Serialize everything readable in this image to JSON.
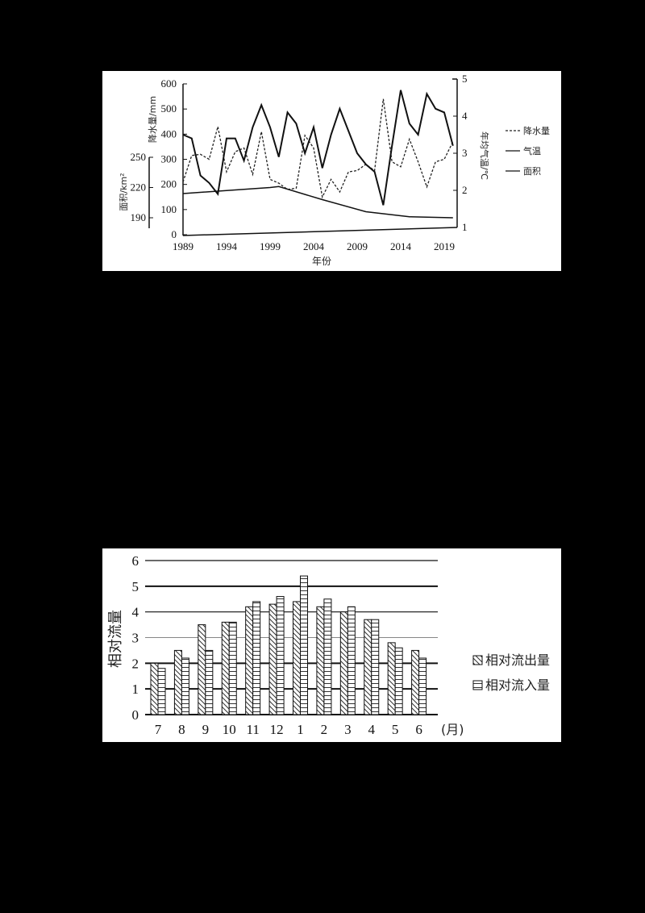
{
  "chart_data": [
    {
      "type": "line",
      "title": "",
      "xlabel": "年份",
      "x_tick_labels": [
        "1989",
        "1994",
        "1999",
        "2004",
        "2009",
        "2014",
        "2019"
      ],
      "axes": {
        "left_precip": {
          "label": "降水量/mm",
          "ticks": [
            0,
            100,
            200,
            300,
            400,
            500,
            600
          ],
          "range": [
            0,
            600
          ]
        },
        "left_area": {
          "label": "面积/km²",
          "ticks": [
            190,
            220,
            250
          ]
        },
        "right_temp": {
          "label": "年均气温/℃",
          "ticks": [
            1,
            2,
            3,
            4,
            5
          ],
          "range": [
            1,
            5
          ]
        }
      },
      "legend": [
        "降水量",
        "气温",
        "面积"
      ],
      "legend_position": "right",
      "series": [
        {
          "name": "降水量",
          "style": "dashed",
          "axis": "left_precip",
          "x": [
            1989,
            1990,
            1991,
            1992,
            1993,
            1994,
            1995,
            1996,
            1997,
            1998,
            1999,
            2000,
            2001,
            2002,
            2003,
            2004,
            2005,
            2006,
            2007,
            2008,
            2009,
            2010,
            2011,
            2012,
            2013,
            2014,
            2015,
            2016,
            2017,
            2018,
            2019,
            2020
          ],
          "values": [
            210,
            315,
            320,
            300,
            430,
            250,
            330,
            345,
            240,
            410,
            220,
            205,
            180,
            185,
            395,
            345,
            150,
            220,
            170,
            250,
            255,
            280,
            255,
            540,
            290,
            270,
            380,
            290,
            190,
            290,
            300,
            370
          ]
        },
        {
          "name": "气温",
          "style": "solid",
          "axis": "right_temp",
          "x": [
            1989,
            1990,
            1991,
            1992,
            1993,
            1994,
            1995,
            1996,
            1997,
            1998,
            1999,
            2000,
            2001,
            2002,
            2003,
            2004,
            2005,
            2006,
            2007,
            2008,
            2009,
            2010,
            2011,
            2012,
            2013,
            2014,
            2015,
            2016,
            2017,
            2018,
            2019,
            2020
          ],
          "values": [
            3.5,
            3.4,
            2.4,
            2.2,
            1.9,
            3.4,
            3.4,
            2.8,
            3.7,
            4.3,
            3.7,
            2.9,
            4.1,
            3.8,
            3.0,
            3.7,
            2.6,
            3.5,
            4.2,
            3.6,
            3.0,
            2.7,
            2.5,
            1.6,
            3.2,
            4.7,
            3.8,
            3.5,
            4.6,
            4.2,
            4.1,
            3.2
          ]
        },
        {
          "name": "面积",
          "style": "solid-thin",
          "axis": "left_area",
          "x": [
            1989,
            1999,
            2000,
            2005,
            2010,
            2015,
            2020
          ],
          "values": [
            214,
            220,
            221,
            208,
            196,
            191,
            190
          ]
        }
      ]
    },
    {
      "type": "bar",
      "title": "",
      "xlabel": "(月)",
      "ylabel": "相对流量",
      "ylim": [
        0,
        6
      ],
      "y_ticks": [
        0,
        1,
        2,
        3,
        4,
        5,
        6
      ],
      "grid": true,
      "legend_position": "right",
      "categories": [
        "7",
        "8",
        "9",
        "10",
        "11",
        "12",
        "1",
        "2",
        "3",
        "4",
        "5",
        "6"
      ],
      "series": [
        {
          "name": "相对流出量",
          "pattern": "diagonal",
          "values": [
            2.0,
            2.5,
            3.5,
            3.6,
            4.2,
            4.3,
            4.4,
            4.2,
            4.0,
            3.7,
            2.8,
            2.5
          ]
        },
        {
          "name": "相对流入量",
          "pattern": "horizontal",
          "values": [
            1.8,
            2.2,
            2.5,
            3.6,
            4.4,
            4.6,
            5.4,
            4.5,
            4.2,
            3.7,
            2.6,
            2.2
          ]
        }
      ]
    }
  ]
}
